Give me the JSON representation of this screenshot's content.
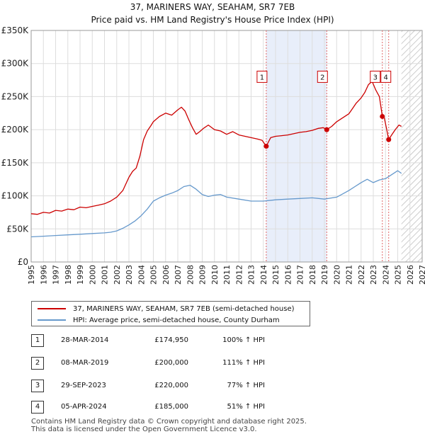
{
  "title": {
    "line1": "37, MARINERS WAY, SEAHAM, SR7 7EB",
    "line2": "Price paid vs. HM Land Registry's House Price Index (HPI)"
  },
  "chart_data": {
    "type": "line",
    "title": "37, MARINERS WAY, SEAHAM, SR7 7EB — Price paid vs. HM Land Registry's House Price Index (HPI)",
    "xlim": [
      1995,
      2027
    ],
    "ylim": [
      0,
      350000
    ],
    "x_ticks": [
      1995,
      1996,
      1997,
      1998,
      1999,
      2000,
      2001,
      2002,
      2003,
      2004,
      2005,
      2006,
      2007,
      2008,
      2009,
      2010,
      2011,
      2012,
      2013,
      2014,
      2015,
      2016,
      2017,
      2018,
      2019,
      2020,
      2021,
      2022,
      2023,
      2024,
      2025,
      2026,
      2027
    ],
    "x_tick_labels": [
      "1995",
      "1996",
      "1997",
      "1998",
      "1999",
      "2000",
      "2001",
      "2002",
      "2003",
      "2004",
      "2005",
      "2006",
      "2007",
      "2008",
      "2009",
      "2010",
      "2011",
      "2012",
      "2013",
      "2014",
      "2015",
      "2016",
      "2017",
      "2018",
      "2019",
      "2020",
      "2021",
      "2022",
      "2023",
      "2024",
      "2025",
      "2026",
      "2027"
    ],
    "y_ticks": [
      0,
      50000,
      100000,
      150000,
      200000,
      250000,
      300000,
      350000
    ],
    "y_tick_labels": [
      "£0",
      "£50K",
      "£100K",
      "£150K",
      "£200K",
      "£250K",
      "£300K",
      "£350K"
    ],
    "grid": true,
    "shaded_period": [
      2014.24,
      2019.19
    ],
    "hatched_from": 2025.3,
    "series": [
      {
        "name": "37, MARINERS WAY, SEAHAM, SR7 7EB (semi-detached house)",
        "color": "#cc0000",
        "x": [
          1995,
          1995.5,
          1996,
          1996.5,
          1997,
          1997.5,
          1998,
          1998.5,
          1999,
          1999.5,
          2000,
          2000.5,
          2001,
          2001.5,
          2002,
          2002.5,
          2003,
          2003.3,
          2003.6,
          2003.9,
          2004.2,
          2004.5,
          2004.8,
          2005,
          2005.5,
          2006,
          2006.5,
          2007,
          2007.3,
          2007.6,
          2007.9,
          2008.2,
          2008.5,
          2008.8,
          2009.1,
          2009.5,
          2010,
          2010.5,
          2011,
          2011.5,
          2012,
          2012.5,
          2013,
          2013.5,
          2013.9,
          2014.24,
          2014.6,
          2015,
          2015.5,
          2016,
          2016.5,
          2017,
          2017.5,
          2018,
          2018.5,
          2018.9,
          2019.19,
          2019.6,
          2020,
          2020.5,
          2021,
          2021.3,
          2021.6,
          2022,
          2022.3,
          2022.6,
          2022.9,
          2023.2,
          2023.5,
          2023.74,
          2023.9,
          2024.1,
          2024.26,
          2024.5,
          2024.8,
          2025.1,
          2025.3
        ],
        "y": [
          73000,
          72000,
          75000,
          74000,
          78000,
          77000,
          80000,
          79000,
          83000,
          82000,
          84000,
          86000,
          88000,
          92000,
          98000,
          108000,
          128000,
          137000,
          142000,
          160000,
          185000,
          198000,
          206000,
          212000,
          220000,
          225000,
          222000,
          230000,
          234000,
          228000,
          215000,
          203000,
          193000,
          197000,
          202000,
          207000,
          200000,
          198000,
          193000,
          197000,
          192000,
          190000,
          188000,
          186000,
          184000,
          174950,
          188000,
          190000,
          191000,
          192000,
          194000,
          196000,
          197000,
          199000,
          202000,
          203000,
          200000,
          205000,
          212000,
          218000,
          224000,
          232000,
          240000,
          248000,
          256000,
          268000,
          273000,
          260000,
          250000,
          220000,
          218000,
          200000,
          185000,
          192000,
          200000,
          207000,
          205000
        ]
      },
      {
        "name": "HPI: Average price, semi-detached house, County Durham",
        "color": "#6699cc",
        "x": [
          1995,
          1996,
          1997,
          1998,
          1999,
          2000,
          2001,
          2001.5,
          2002,
          2002.5,
          2003,
          2003.5,
          2004,
          2004.5,
          2005,
          2005.5,
          2006,
          2006.5,
          2007,
          2007.5,
          2008,
          2008.5,
          2009,
          2009.5,
          2010,
          2010.5,
          2011,
          2012,
          2013,
          2014,
          2015,
          2016,
          2017,
          2018,
          2019,
          2020,
          2020.5,
          2021,
          2021.5,
          2022,
          2022.5,
          2023,
          2023.5,
          2024,
          2024.5,
          2025,
          2025.3
        ],
        "y": [
          38000,
          39000,
          40000,
          41000,
          42000,
          43000,
          44000,
          45000,
          47000,
          51000,
          56000,
          62000,
          70000,
          80000,
          92000,
          97000,
          101000,
          104000,
          108000,
          114000,
          116000,
          110000,
          102000,
          99000,
          101000,
          102000,
          98000,
          95000,
          92000,
          92000,
          94000,
          95000,
          96000,
          97000,
          95000,
          98000,
          103000,
          108000,
          114000,
          120000,
          125000,
          120000,
          124000,
          126000,
          132000,
          138000,
          134000
        ]
      }
    ],
    "sales": [
      {
        "num": "1",
        "date": "28-MAR-2014",
        "x": 2014.24,
        "price": 174950,
        "price_label": "£174,950",
        "hpi": "100% ↑ HPI"
      },
      {
        "num": "2",
        "date": "08-MAR-2019",
        "x": 2019.19,
        "price": 200000,
        "price_label": "£200,000",
        "hpi": "111% ↑ HPI"
      },
      {
        "num": "3",
        "date": "29-SEP-2023",
        "x": 2023.74,
        "price": 220000,
        "price_label": "£220,000",
        "hpi": "77% ↑ HPI"
      },
      {
        "num": "4",
        "date": "05-APR-2024",
        "x": 2024.26,
        "price": 185000,
        "price_label": "£185,000",
        "hpi": "51% ↑ HPI"
      }
    ],
    "label_box_value": 280000
  },
  "legend": {
    "property_label": "37, MARINERS WAY, SEAHAM, SR7 7EB (semi-detached house)",
    "hpi_label": "HPI: Average price, semi-detached house, County Durham",
    "property_color": "#cc0000",
    "hpi_color": "#6699cc"
  },
  "footer": {
    "line1": "Contains HM Land Registry data © Crown copyright and database right 2025.",
    "line2": "This data is licensed under the Open Government Licence v3.0."
  }
}
